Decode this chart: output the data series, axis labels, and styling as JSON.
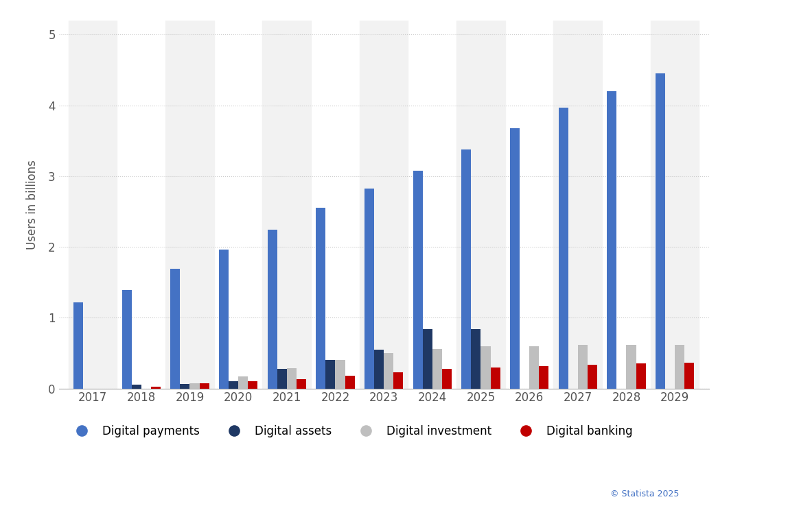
{
  "years": [
    2017,
    2018,
    2019,
    2020,
    2021,
    2022,
    2023,
    2024,
    2025,
    2026,
    2027,
    2028,
    2029
  ],
  "digital_payments": [
    1.22,
    1.39,
    1.69,
    1.96,
    2.24,
    2.55,
    2.82,
    3.08,
    3.38,
    3.68,
    3.97,
    4.2,
    4.45
  ],
  "digital_assets": [
    0.0,
    0.05,
    0.06,
    0.1,
    0.28,
    0.4,
    0.55,
    0.84,
    0.84,
    0.0,
    0.0,
    0.0,
    0.0
  ],
  "digital_investment": [
    0.0,
    0.0,
    0.07,
    0.17,
    0.29,
    0.4,
    0.5,
    0.56,
    0.6,
    0.6,
    0.62,
    0.62,
    0.62
  ],
  "digital_banking": [
    0.0,
    0.03,
    0.07,
    0.1,
    0.13,
    0.18,
    0.23,
    0.28,
    0.3,
    0.32,
    0.34,
    0.35,
    0.36
  ],
  "color_payments": "#4472C4",
  "color_assets": "#1F3864",
  "color_investment": "#BFBFBF",
  "color_banking": "#C00000",
  "ylabel": "Users in billions",
  "ylim": [
    0,
    5.2
  ],
  "yticks": [
    0,
    1,
    2,
    3,
    4,
    5
  ],
  "background_color": "#FFFFFF",
  "plot_bg_color": "#FFFFFF",
  "stripe_color": "#F2F2F2",
  "grid_color": "#CCCCCC",
  "legend_labels": [
    "Digital payments",
    "Digital assets",
    "Digital investment",
    "Digital banking"
  ],
  "watermark": "© Statista 2025"
}
